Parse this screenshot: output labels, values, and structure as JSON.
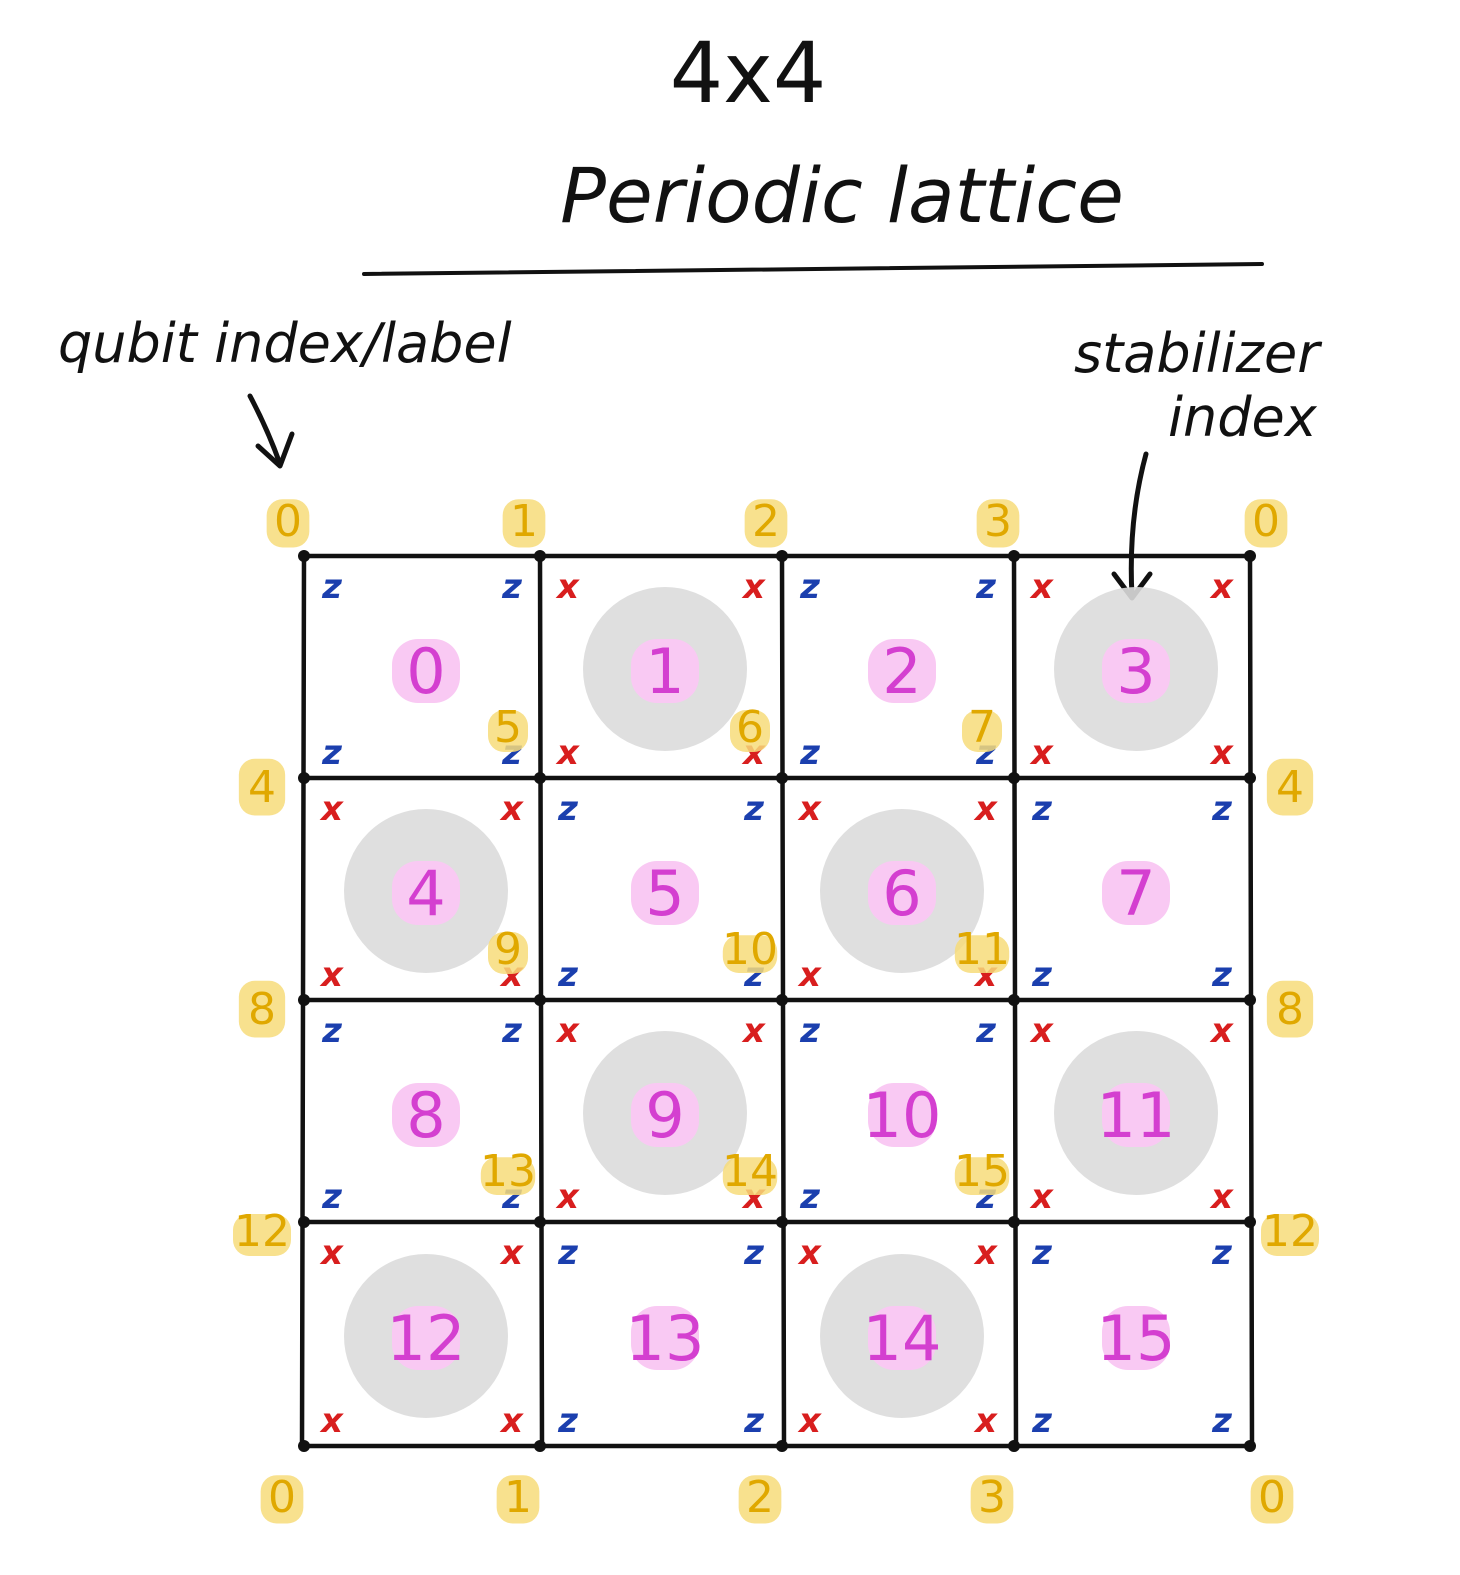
{
  "title": {
    "line1": "4x4",
    "line2": "Periodic lattice"
  },
  "annotations": {
    "qubit_label": "qubit index/label",
    "stabilizer_label_line1": "stabilizer",
    "stabilizer_label_line2": "index"
  },
  "colors": {
    "ink": "#111111",
    "qubit_text": "#e0a800",
    "qubit_highlight": "#f7dc7a",
    "stabilizer_text": "#d43fd0",
    "stabilizer_highlight": "#f9c9f3",
    "x_operator": "#d81e1e",
    "z_operator": "#1b3fae",
    "shaded_plaquette": "#dcdcdc"
  },
  "lattice": {
    "rows": 4,
    "cols": 4,
    "stabilizers": [
      {
        "index": "0",
        "type": "Z",
        "shaded": false
      },
      {
        "index": "1",
        "type": "X",
        "shaded": true
      },
      {
        "index": "2",
        "type": "Z",
        "shaded": false
      },
      {
        "index": "3",
        "type": "X",
        "shaded": true
      },
      {
        "index": "4",
        "type": "X",
        "shaded": true
      },
      {
        "index": "5",
        "type": "Z",
        "shaded": false
      },
      {
        "index": "6",
        "type": "X",
        "shaded": true
      },
      {
        "index": "7",
        "type": "Z",
        "shaded": false
      },
      {
        "index": "8",
        "type": "Z",
        "shaded": false
      },
      {
        "index": "9",
        "type": "X",
        "shaded": true
      },
      {
        "index": "10",
        "type": "Z",
        "shaded": false
      },
      {
        "index": "11",
        "type": "X",
        "shaded": true
      },
      {
        "index": "12",
        "type": "X",
        "shaded": true
      },
      {
        "index": "13",
        "type": "Z",
        "shaded": false
      },
      {
        "index": "14",
        "type": "X",
        "shaded": true
      },
      {
        "index": "15",
        "type": "Z",
        "shaded": false
      }
    ],
    "operator_glyphs": {
      "X": "x",
      "Z": "z"
    },
    "qubit_labels": {
      "top": [
        "0",
        "1",
        "2",
        "3",
        "0"
      ],
      "bottom": [
        "0",
        "1",
        "2",
        "3",
        "0"
      ],
      "left": [
        "0",
        "4",
        "8",
        "12",
        "0"
      ],
      "right": [
        "0",
        "4",
        "8",
        "12",
        "0"
      ],
      "interior": [
        {
          "label": "5",
          "row": 1,
          "col": 1
        },
        {
          "label": "6",
          "row": 1,
          "col": 2
        },
        {
          "label": "7",
          "row": 1,
          "col": 3
        },
        {
          "label": "9",
          "row": 2,
          "col": 1
        },
        {
          "label": "10",
          "row": 2,
          "col": 2
        },
        {
          "label": "11",
          "row": 2,
          "col": 3
        },
        {
          "label": "13",
          "row": 3,
          "col": 1
        },
        {
          "label": "14",
          "row": 3,
          "col": 2
        },
        {
          "label": "15",
          "row": 3,
          "col": 3
        }
      ]
    }
  }
}
